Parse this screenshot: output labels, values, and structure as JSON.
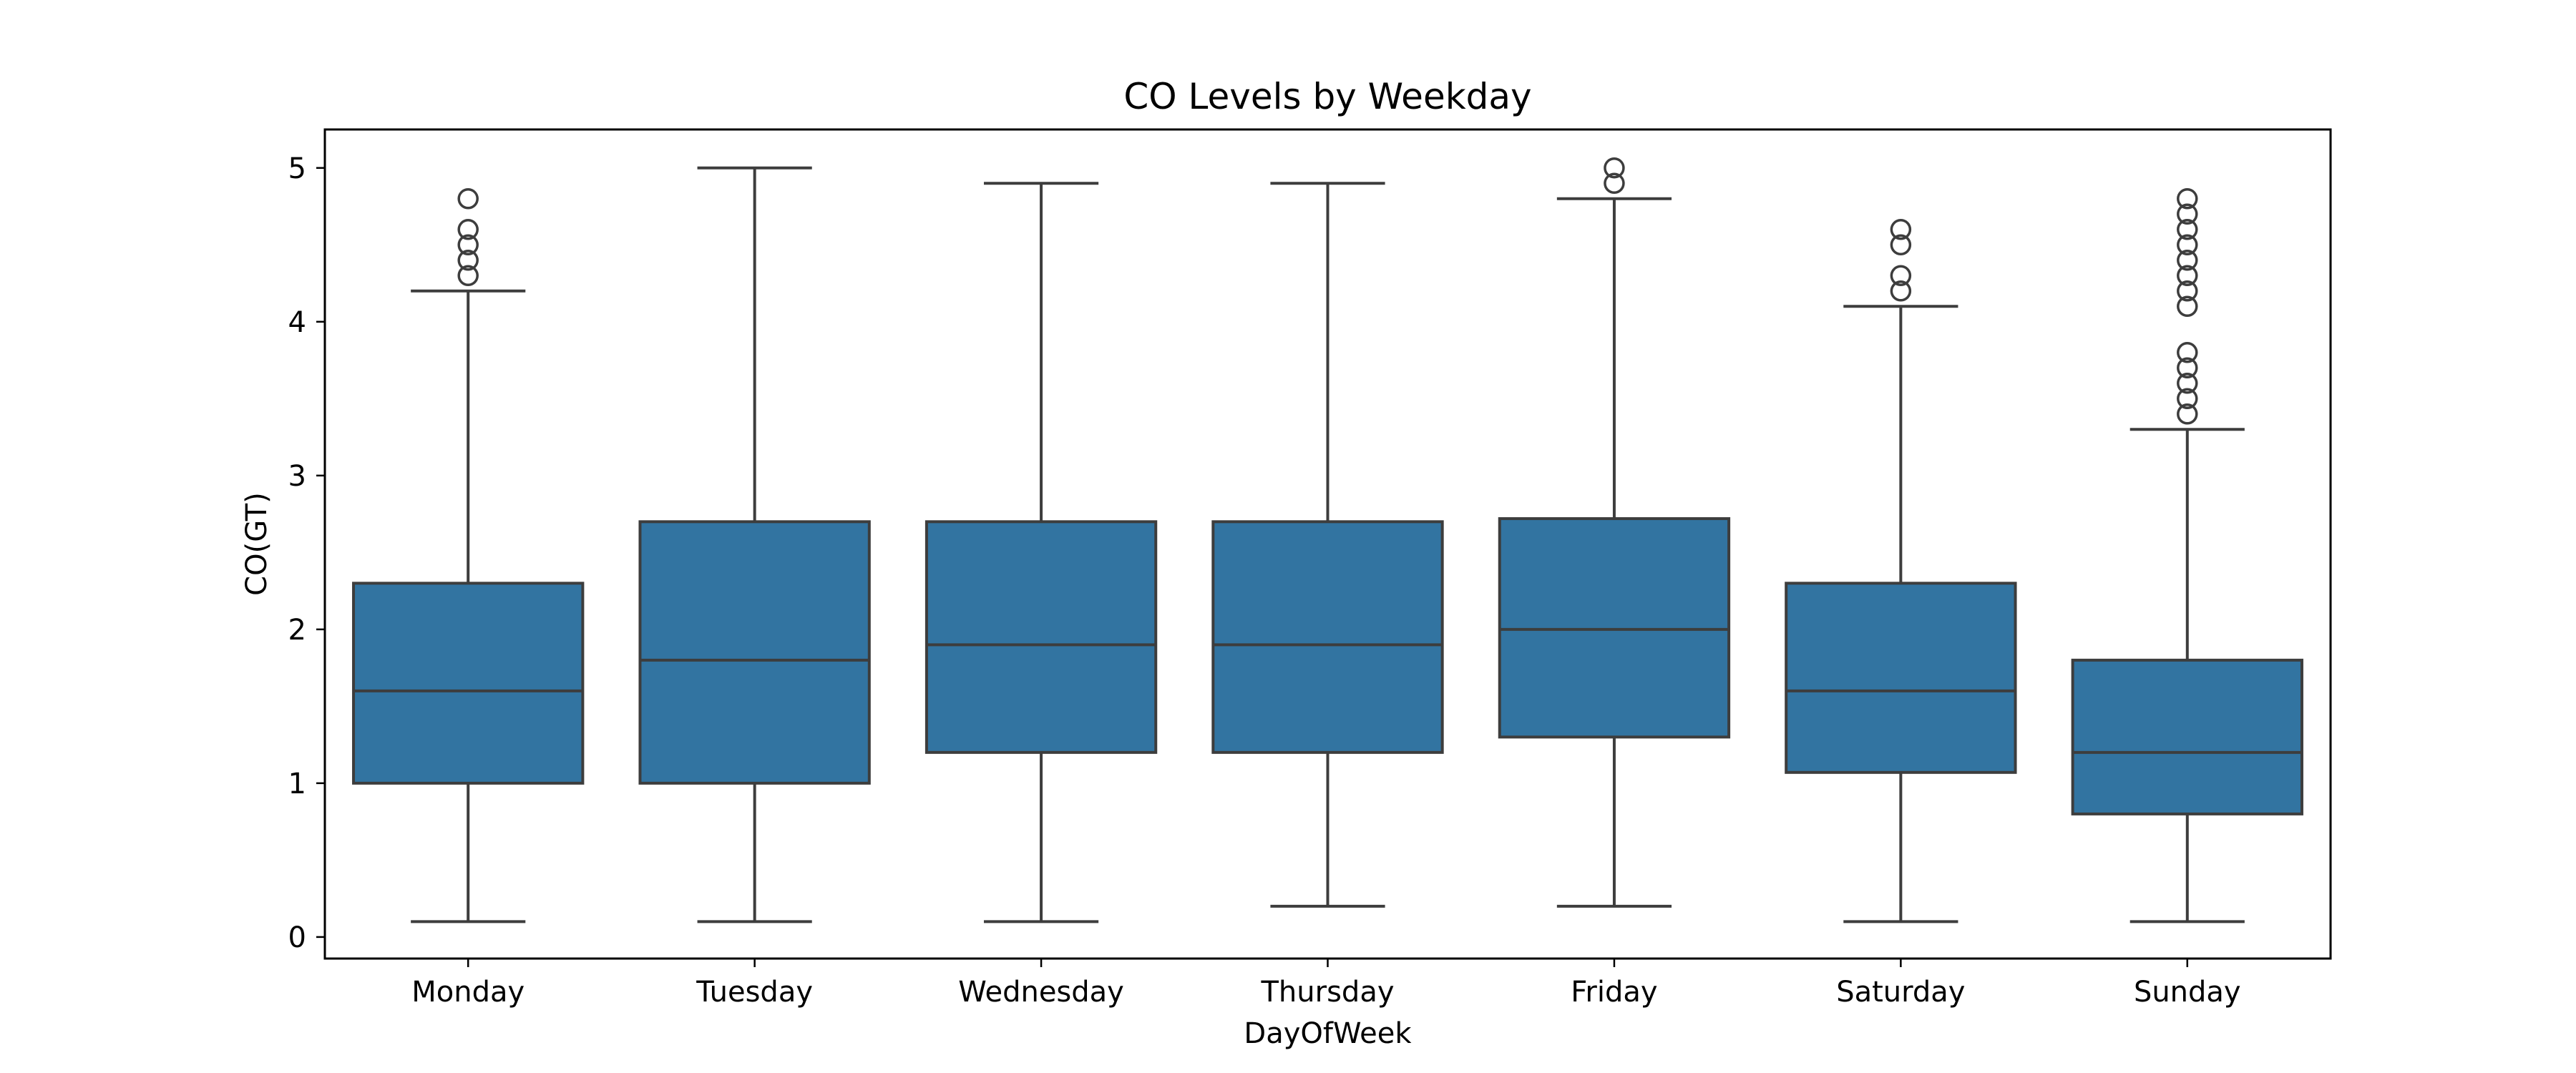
{
  "chart_data": {
    "type": "box",
    "title": "CO Levels by Weekday",
    "xlabel": "DayOfWeek",
    "ylabel": "CO(GT)",
    "ylim": [
      -0.14,
      5.25
    ],
    "yticks": [
      0,
      1,
      2,
      3,
      4,
      5
    ],
    "grid": false,
    "legend": "none",
    "box_color": "#3274a1",
    "line_color": "#3d3d3d",
    "categories": [
      "Monday",
      "Tuesday",
      "Wednesday",
      "Thursday",
      "Friday",
      "Saturday",
      "Sunday"
    ],
    "boxes": [
      {
        "label": "Monday",
        "whislo": 0.1,
        "q1": 1.0,
        "med": 1.6,
        "q3": 2.3,
        "whishi": 4.2,
        "fliers": [
          4.3,
          4.4,
          4.5,
          4.6,
          4.8
        ]
      },
      {
        "label": "Tuesday",
        "whislo": 0.1,
        "q1": 1.0,
        "med": 1.8,
        "q3": 2.7,
        "whishi": 5.0,
        "fliers": []
      },
      {
        "label": "Wednesday",
        "whislo": 0.1,
        "q1": 1.2,
        "med": 1.9,
        "q3": 2.7,
        "whishi": 4.9,
        "fliers": []
      },
      {
        "label": "Thursday",
        "whislo": 0.2,
        "q1": 1.2,
        "med": 1.9,
        "q3": 2.7,
        "whishi": 4.9,
        "fliers": []
      },
      {
        "label": "Friday",
        "whislo": 0.2,
        "q1": 1.3,
        "med": 2.0,
        "q3": 2.72,
        "whishi": 4.8,
        "fliers": [
          4.9,
          5.0
        ]
      },
      {
        "label": "Saturday",
        "whislo": 0.1,
        "q1": 1.07,
        "med": 1.6,
        "q3": 2.3,
        "whishi": 4.1,
        "fliers": [
          4.2,
          4.3,
          4.5,
          4.6
        ]
      },
      {
        "label": "Sunday",
        "whislo": 0.1,
        "q1": 0.8,
        "med": 1.2,
        "q3": 1.8,
        "whishi": 3.3,
        "fliers": [
          3.4,
          3.5,
          3.6,
          3.7,
          3.8,
          4.1,
          4.2,
          4.3,
          4.4,
          4.5,
          4.6,
          4.7,
          4.8
        ]
      }
    ]
  }
}
